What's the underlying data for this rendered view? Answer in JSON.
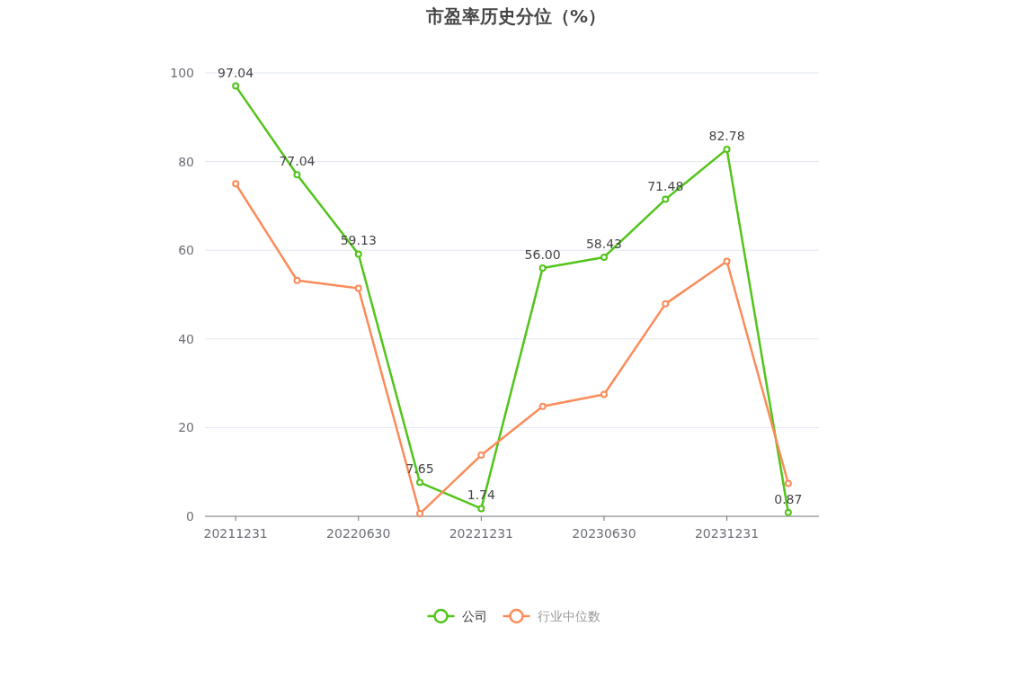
{
  "chart_data": {
    "type": "line",
    "title": "市盈率历史分位（%）",
    "categories": [
      "20211231",
      null,
      "20220630",
      null,
      "20221231",
      null,
      "20230630",
      null,
      "20231231",
      null
    ],
    "series": [
      {
        "name": "公司",
        "color": "#52c41a",
        "values": [
          97.04,
          77.04,
          59.13,
          7.65,
          1.74,
          56.0,
          58.43,
          71.48,
          82.78,
          0.87
        ],
        "value_labels": [
          "97.04",
          "77.04",
          "59.13",
          "7.65",
          "1.74",
          "56.00",
          "58.43",
          "71.48",
          "82.78",
          "0.87"
        ]
      },
      {
        "name": "行业中位数",
        "color": "#fa8c5a",
        "values": [
          75.0,
          53.2,
          51.4,
          0.6,
          13.8,
          24.8,
          27.5,
          47.9,
          57.5,
          7.4
        ]
      }
    ],
    "ylim": [
      0,
      100
    ],
    "yticks": [
      0,
      20,
      40,
      60,
      80,
      100
    ],
    "grid": "y",
    "legend": "bottom",
    "marker": "circle",
    "line_style": "solid"
  }
}
